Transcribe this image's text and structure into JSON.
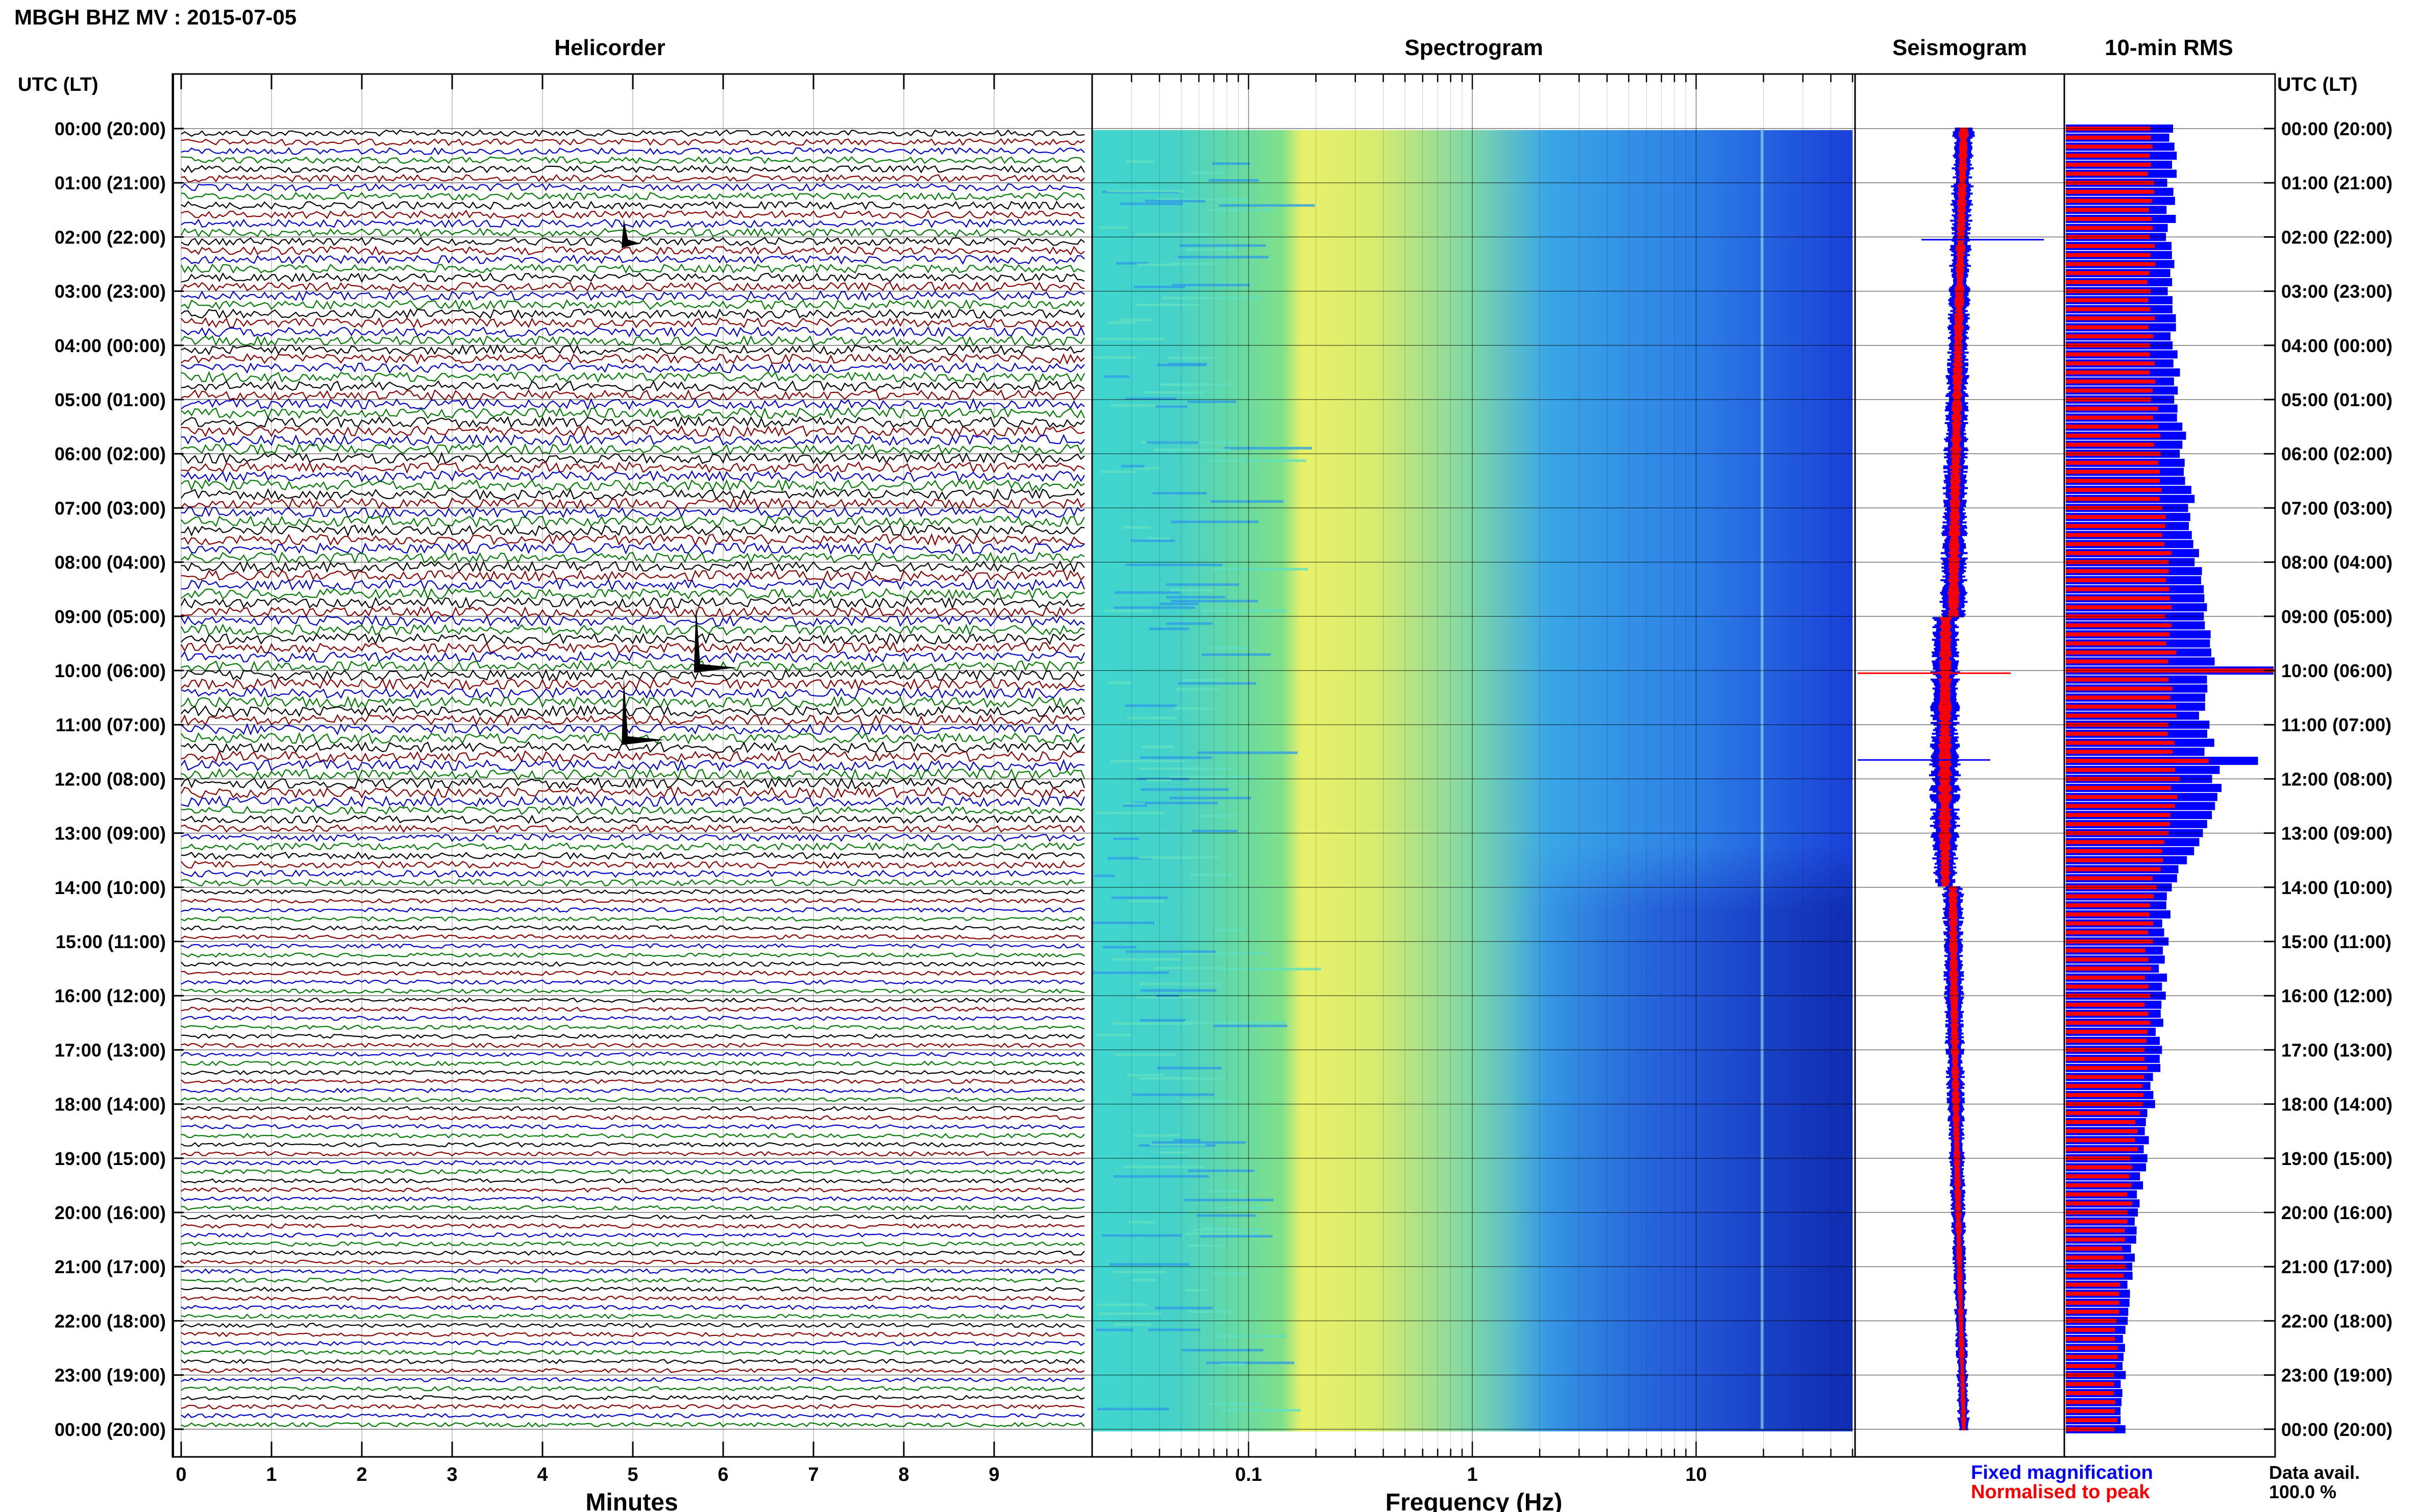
{
  "header": {
    "title": "MBGH BHZ MV : 2015-07-05",
    "utc_label": "UTC (LT)",
    "utc_label_right": "UTC (LT)"
  },
  "panels": {
    "helicorder_title": "Helicorder",
    "spectrogram_title": "Spectrogram",
    "seismogram_title": "Seismogram",
    "rms_title": "10-min RMS"
  },
  "axes": {
    "helicorder_xlabel": "Minutes",
    "spectrogram_xlabel": "Frequency (Hz)",
    "minute_ticks": [
      "0",
      "1",
      "2",
      "3",
      "4",
      "5",
      "6",
      "7",
      "8",
      "9"
    ],
    "freq_ticks": [
      "0.1",
      "1",
      "10"
    ]
  },
  "time_labels": [
    "00:00 (20:00)",
    "01:00 (21:00)",
    "02:00 (22:00)",
    "03:00 (23:00)",
    "04:00 (00:00)",
    "05:00 (01:00)",
    "06:00 (02:00)",
    "07:00 (03:00)",
    "08:00 (04:00)",
    "09:00 (05:00)",
    "10:00 (06:00)",
    "11:00 (07:00)",
    "12:00 (08:00)",
    "13:00 (09:00)",
    "14:00 (10:00)",
    "15:00 (11:00)",
    "16:00 (12:00)",
    "17:00 (13:00)",
    "18:00 (14:00)",
    "19:00 (15:00)",
    "20:00 (16:00)",
    "21:00 (17:00)",
    "22:00 (18:00)",
    "23:00 (19:00)",
    "00:00 (20:00)"
  ],
  "legend": {
    "fixed": "Fixed magnification",
    "normalised": "Normalised to peak",
    "data_avail_label": "Data avail.",
    "data_avail_value": "100.0 %"
  },
  "colors": {
    "blue": "#0000ff",
    "red": "#ff0000",
    "trace_cycle": [
      "#000000",
      "#8b0000",
      "#0000cd",
      "#007a00"
    ]
  },
  "chart_data": [
    {
      "type": "line",
      "title": "Helicorder",
      "xlabel": "Minutes",
      "xlim": [
        0,
        10
      ],
      "rows_per_hour": 6,
      "events": [
        {
          "time": "02:00",
          "minute": 4.9
        },
        {
          "time": "09:50",
          "minute": 5.7
        },
        {
          "time": "11:10",
          "minute": 4.9
        }
      ]
    },
    {
      "type": "heatmap",
      "title": "Spectrogram",
      "xlabel": "Frequency (Hz)",
      "xscale": "log",
      "xlim": [
        0.02,
        50
      ],
      "peak_band_hz": [
        0.2,
        0.6
      ]
    },
    {
      "type": "bar",
      "title": "10-min RMS",
      "hours": [
        0,
        1,
        2,
        3,
        4,
        5,
        6,
        7,
        8,
        9,
        10,
        11,
        12,
        13,
        14,
        15,
        16,
        17,
        18,
        19,
        20,
        21,
        22,
        23,
        24
      ],
      "series": [
        {
          "name": "Fixed magnification",
          "values": [
            210,
            205,
            200,
            205,
            210,
            215,
            230,
            240,
            250,
            265,
            275,
            265,
            290,
            270,
            205,
            190,
            185,
            180,
            165,
            150,
            135,
            125,
            115,
            110,
            110
          ]
        },
        {
          "name": "Normalised to peak",
          "values": [
            170,
            165,
            165,
            165,
            165,
            170,
            180,
            190,
            195,
            200,
            205,
            205,
            210,
            200,
            170,
            160,
            160,
            155,
            145,
            130,
            120,
            110,
            100,
            95,
            95
          ]
        }
      ],
      "spikes": [
        {
          "time": "10:00",
          "fixed": 400,
          "normalised": 400
        },
        {
          "time": "11:40",
          "fixed": 370,
          "normalised": 275
        }
      ]
    }
  ]
}
